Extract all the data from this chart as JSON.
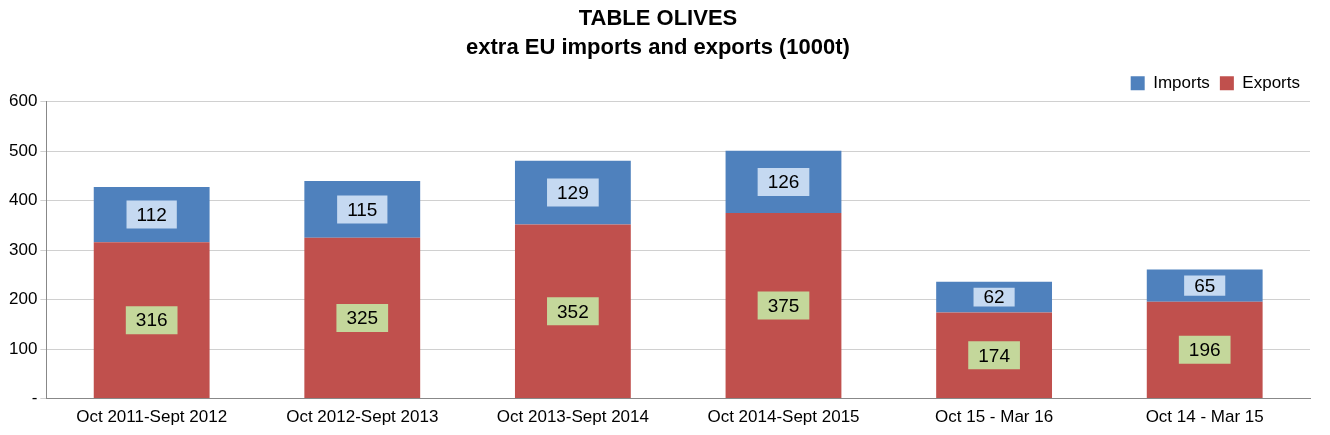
{
  "chart_data": {
    "type": "bar",
    "title": "TABLE OLIVES",
    "subtitle": "extra EU imports and exports (1000t)",
    "categories": [
      "Oct 2011-Sept 2012",
      "Oct 2012-Sept 2013",
      "Oct 2013-Sept 2014",
      "Oct 2014-Sept 2015",
      "Oct 15 - Mar 16",
      "Oct 14 - Mar 15"
    ],
    "series": [
      {
        "name": "Exports",
        "color": "#c0504d",
        "values": [
          316,
          325,
          352,
          375,
          174,
          196
        ]
      },
      {
        "name": "Imports",
        "color": "#4f81bd",
        "values": [
          112,
          115,
          129,
          126,
          62,
          65
        ]
      }
    ],
    "stacked": true,
    "data_labels": true,
    "grid": "y",
    "legend": "top right",
    "ylim": [
      0,
      600
    ],
    "yticks": [
      {
        "value": 0,
        "label": "-"
      },
      100,
      200,
      300,
      400,
      500,
      600
    ]
  }
}
